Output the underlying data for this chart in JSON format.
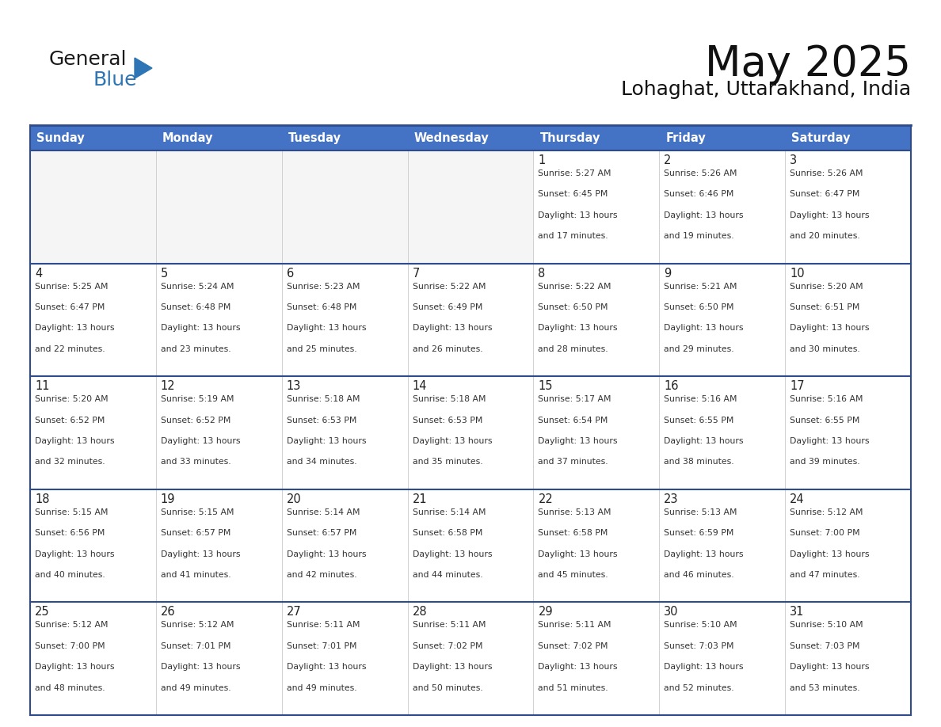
{
  "title": "May 2025",
  "subtitle": "Lohaghat, Uttarakhand, India",
  "header_bg_color": "#4472C4",
  "header_text_color": "#FFFFFF",
  "separator_line_color": "#2E4B8E",
  "cell_bg_color": "#FFFFFF",
  "empty_row_bg": "#F5F5F5",
  "day_number_color": "#222222",
  "cell_text_color": "#333333",
  "logo_general_color": "#1a1a1a",
  "logo_blue_color": "#2E75B6",
  "logo_triangle_color": "#2E75B6",
  "days_of_week": [
    "Sunday",
    "Monday",
    "Tuesday",
    "Wednesday",
    "Thursday",
    "Friday",
    "Saturday"
  ],
  "weeks": [
    [
      {
        "day": "",
        "sunrise": "",
        "sunset": "",
        "daylight": ""
      },
      {
        "day": "",
        "sunrise": "",
        "sunset": "",
        "daylight": ""
      },
      {
        "day": "",
        "sunrise": "",
        "sunset": "",
        "daylight": ""
      },
      {
        "day": "",
        "sunrise": "",
        "sunset": "",
        "daylight": ""
      },
      {
        "day": "1",
        "sunrise": "5:27 AM",
        "sunset": "6:45 PM",
        "daylight": "13 hours and 17 minutes."
      },
      {
        "day": "2",
        "sunrise": "5:26 AM",
        "sunset": "6:46 PM",
        "daylight": "13 hours and 19 minutes."
      },
      {
        "day": "3",
        "sunrise": "5:26 AM",
        "sunset": "6:47 PM",
        "daylight": "13 hours and 20 minutes."
      }
    ],
    [
      {
        "day": "4",
        "sunrise": "5:25 AM",
        "sunset": "6:47 PM",
        "daylight": "13 hours and 22 minutes."
      },
      {
        "day": "5",
        "sunrise": "5:24 AM",
        "sunset": "6:48 PM",
        "daylight": "13 hours and 23 minutes."
      },
      {
        "day": "6",
        "sunrise": "5:23 AM",
        "sunset": "6:48 PM",
        "daylight": "13 hours and 25 minutes."
      },
      {
        "day": "7",
        "sunrise": "5:22 AM",
        "sunset": "6:49 PM",
        "daylight": "13 hours and 26 minutes."
      },
      {
        "day": "8",
        "sunrise": "5:22 AM",
        "sunset": "6:50 PM",
        "daylight": "13 hours and 28 minutes."
      },
      {
        "day": "9",
        "sunrise": "5:21 AM",
        "sunset": "6:50 PM",
        "daylight": "13 hours and 29 minutes."
      },
      {
        "day": "10",
        "sunrise": "5:20 AM",
        "sunset": "6:51 PM",
        "daylight": "13 hours and 30 minutes."
      }
    ],
    [
      {
        "day": "11",
        "sunrise": "5:20 AM",
        "sunset": "6:52 PM",
        "daylight": "13 hours and 32 minutes."
      },
      {
        "day": "12",
        "sunrise": "5:19 AM",
        "sunset": "6:52 PM",
        "daylight": "13 hours and 33 minutes."
      },
      {
        "day": "13",
        "sunrise": "5:18 AM",
        "sunset": "6:53 PM",
        "daylight": "13 hours and 34 minutes."
      },
      {
        "day": "14",
        "sunrise": "5:18 AM",
        "sunset": "6:53 PM",
        "daylight": "13 hours and 35 minutes."
      },
      {
        "day": "15",
        "sunrise": "5:17 AM",
        "sunset": "6:54 PM",
        "daylight": "13 hours and 37 minutes."
      },
      {
        "day": "16",
        "sunrise": "5:16 AM",
        "sunset": "6:55 PM",
        "daylight": "13 hours and 38 minutes."
      },
      {
        "day": "17",
        "sunrise": "5:16 AM",
        "sunset": "6:55 PM",
        "daylight": "13 hours and 39 minutes."
      }
    ],
    [
      {
        "day": "18",
        "sunrise": "5:15 AM",
        "sunset": "6:56 PM",
        "daylight": "13 hours and 40 minutes."
      },
      {
        "day": "19",
        "sunrise": "5:15 AM",
        "sunset": "6:57 PM",
        "daylight": "13 hours and 41 minutes."
      },
      {
        "day": "20",
        "sunrise": "5:14 AM",
        "sunset": "6:57 PM",
        "daylight": "13 hours and 42 minutes."
      },
      {
        "day": "21",
        "sunrise": "5:14 AM",
        "sunset": "6:58 PM",
        "daylight": "13 hours and 44 minutes."
      },
      {
        "day": "22",
        "sunrise": "5:13 AM",
        "sunset": "6:58 PM",
        "daylight": "13 hours and 45 minutes."
      },
      {
        "day": "23",
        "sunrise": "5:13 AM",
        "sunset": "6:59 PM",
        "daylight": "13 hours and 46 minutes."
      },
      {
        "day": "24",
        "sunrise": "5:12 AM",
        "sunset": "7:00 PM",
        "daylight": "13 hours and 47 minutes."
      }
    ],
    [
      {
        "day": "25",
        "sunrise": "5:12 AM",
        "sunset": "7:00 PM",
        "daylight": "13 hours and 48 minutes."
      },
      {
        "day": "26",
        "sunrise": "5:12 AM",
        "sunset": "7:01 PM",
        "daylight": "13 hours and 49 minutes."
      },
      {
        "day": "27",
        "sunrise": "5:11 AM",
        "sunset": "7:01 PM",
        "daylight": "13 hours and 49 minutes."
      },
      {
        "day": "28",
        "sunrise": "5:11 AM",
        "sunset": "7:02 PM",
        "daylight": "13 hours and 50 minutes."
      },
      {
        "day": "29",
        "sunrise": "5:11 AM",
        "sunset": "7:02 PM",
        "daylight": "13 hours and 51 minutes."
      },
      {
        "day": "30",
        "sunrise": "5:10 AM",
        "sunset": "7:03 PM",
        "daylight": "13 hours and 52 minutes."
      },
      {
        "day": "31",
        "sunrise": "5:10 AM",
        "sunset": "7:03 PM",
        "daylight": "13 hours and 53 minutes."
      }
    ]
  ]
}
